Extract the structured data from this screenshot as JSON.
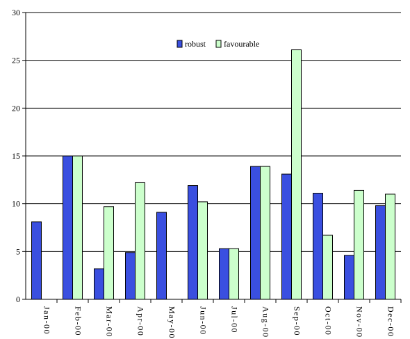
{
  "chart_data": {
    "type": "bar",
    "categories": [
      "Jan-00",
      "Feb-00",
      "Mar-00",
      "Apr-00",
      "May-00",
      "Jun-00",
      "Jul-00",
      "Aug-00",
      "Sep-00",
      "Oct-00",
      "Nov-00",
      "Dec-00"
    ],
    "series": [
      {
        "name": "robust",
        "color": "#3a4fe0",
        "values": [
          8.1,
          15.0,
          3.2,
          4.9,
          9.1,
          11.9,
          5.3,
          13.9,
          13.1,
          11.1,
          4.6,
          9.8
        ]
      },
      {
        "name": "favourable",
        "color": "#ccffcc",
        "values": [
          null,
          15.0,
          9.7,
          12.2,
          null,
          10.2,
          5.3,
          13.9,
          26.1,
          6.7,
          11.4,
          11.0
        ]
      }
    ],
    "title": "",
    "xlabel": "",
    "ylabel": "",
    "ylim": [
      0,
      30
    ],
    "yticks": [
      0,
      5,
      10,
      15,
      20,
      25,
      30
    ],
    "grid": true,
    "legend_position": "top-center"
  }
}
